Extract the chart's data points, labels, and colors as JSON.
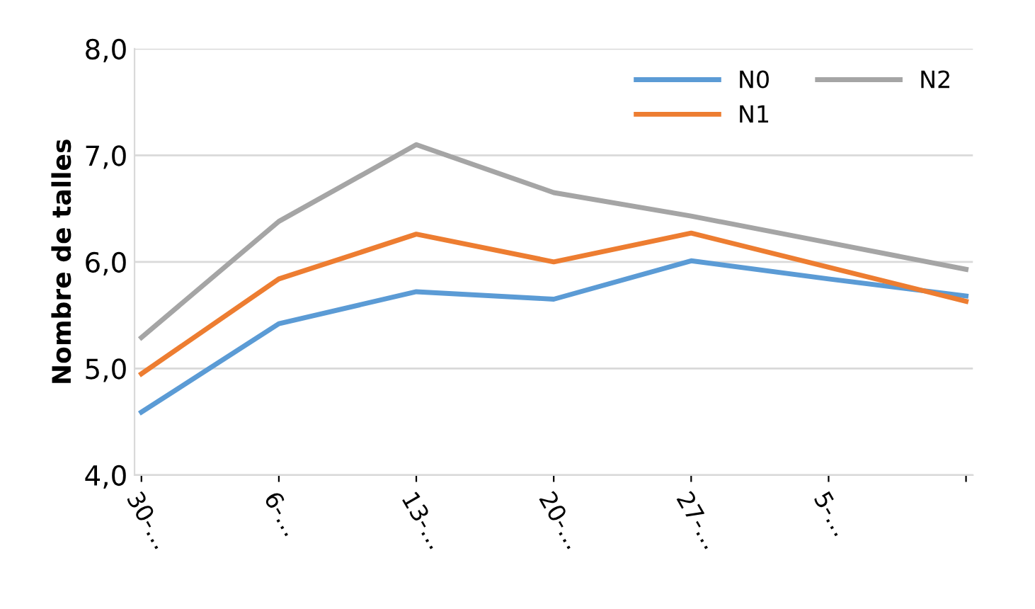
{
  "chart_data": {
    "type": "line",
    "ylabel": "Nombre de talles",
    "categories": [
      "30-…",
      "6-…",
      "13-…",
      "20-…",
      "27-…",
      "5-…",
      null
    ],
    "series": [
      {
        "name": "N0",
        "color": "#5b9bd5",
        "values": [
          4.59,
          5.42,
          5.72,
          5.65,
          6.01,
          5.84,
          5.68
        ]
      },
      {
        "name": "N1",
        "color": "#ed7d31",
        "values": [
          4.95,
          5.84,
          6.26,
          6.0,
          6.27,
          5.95,
          5.63
        ]
      },
      {
        "name": "N2",
        "color": "#a5a5a5",
        "values": [
          5.29,
          6.38,
          7.1,
          6.65,
          6.43,
          6.18,
          5.93
        ]
      }
    ],
    "ylim": [
      4,
      8
    ],
    "yticks": [
      {
        "value": 4,
        "label": "4,0"
      },
      {
        "value": 5,
        "label": "5,0"
      },
      {
        "value": 6,
        "label": "6,0"
      },
      {
        "value": 7,
        "label": "7,0"
      },
      {
        "value": 8,
        "label": "8,0"
      }
    ],
    "grid": "y",
    "legend": "top right",
    "marker": "none",
    "line_style": "solid"
  }
}
